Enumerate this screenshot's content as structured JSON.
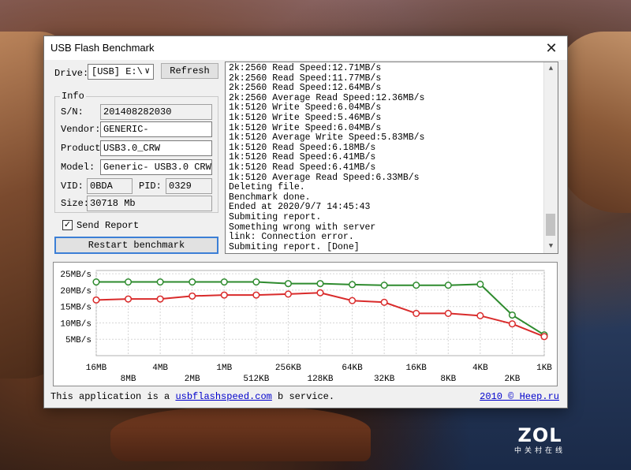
{
  "window": {
    "title": "USB Flash Benchmark",
    "close_glyph": "✕"
  },
  "drive": {
    "label": "Drive:",
    "selected": "[USB] E:\\",
    "refresh_label": "Refresh"
  },
  "info": {
    "legend": "Info",
    "sn_label": "S/N:",
    "sn": "201408282030",
    "vendor_label": "Vendor:",
    "vendor": "GENERIC-",
    "product_label": "Product:",
    "product": "USB3.0_CRW",
    "model_label": "Model:",
    "model": "Generic- USB3.0 CRW",
    "vid_label": "VID:",
    "vid": "0BDA",
    "pid_label": "PID:",
    "pid": "0329",
    "size_label": "Size:",
    "size": "30718 Mb"
  },
  "send_report": {
    "label": "Send Report",
    "checked": true
  },
  "restart_label": "Restart benchmark",
  "log": [
    "2k:2560 Read Speed:12.71MB/s",
    "2k:2560 Read Speed:11.77MB/s",
    "2k:2560 Read Speed:12.64MB/s",
    "2k:2560 Average Read Speed:12.36MB/s",
    "1k:5120 Write Speed:6.04MB/s",
    "1k:5120 Write Speed:5.46MB/s",
    "1k:5120 Write Speed:6.04MB/s",
    "1k:5120 Average Write Speed:5.83MB/s",
    "1k:5120 Read Speed:6.18MB/s",
    "1k:5120 Read Speed:6.41MB/s",
    "1k:5120 Read Speed:6.41MB/s",
    "1k:5120 Average Read Speed:6.33MB/s",
    "Deleting file.",
    "Benchmark done.",
    "Ended at 2020/9/7 14:45:43",
    "Submiting report.",
    "Something wrong with server",
    "link: Connection error.",
    "Submiting report. [Done]"
  ],
  "chart_data": {
    "type": "line",
    "categories": [
      "16MB",
      "8MB",
      "4MB",
      "2MB",
      "1MB",
      "512KB",
      "256KB",
      "128KB",
      "64KB",
      "32KB",
      "16KB",
      "8KB",
      "4KB",
      "2KB",
      "1KB"
    ],
    "y_ticks": [
      "25MB/s",
      "20MB/s",
      "15MB/s",
      "10MB/s",
      "5MB/s"
    ],
    "ylim": [
      0,
      26
    ],
    "grid": true,
    "legend": "none",
    "series": [
      {
        "color": "#2e8b2e",
        "values": [
          22.5,
          22.5,
          22.5,
          22.5,
          22.5,
          22.5,
          22.0,
          22.0,
          21.7,
          21.5,
          21.5,
          21.5,
          21.8,
          12.4,
          6.33
        ]
      },
      {
        "color": "#d92b2b",
        "values": [
          17.0,
          17.3,
          17.3,
          18.2,
          18.5,
          18.5,
          18.8,
          19.2,
          16.8,
          16.3,
          12.9,
          12.9,
          12.2,
          9.7,
          5.83
        ]
      }
    ]
  },
  "footer": {
    "prefix": "This application is a ",
    "link": "usbflashspeed.com",
    "suffix": " b service.",
    "right_link": "2010 © Heep.ru"
  },
  "watermark": {
    "brand": "ZOL",
    "sub": "中关村在线"
  }
}
